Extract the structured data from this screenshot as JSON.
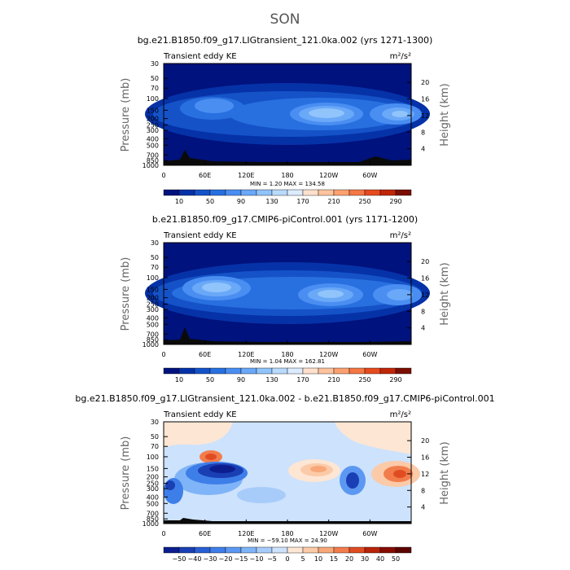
{
  "figure": {
    "title": "SON"
  },
  "colors": {
    "abs_scale": [
      "#00127d",
      "#0632a8",
      "#1552c8",
      "#2870e0",
      "#4a8ef2",
      "#6aa8f8",
      "#90c4fb",
      "#b8dafd",
      "#dcecfe",
      "#ffe0cc",
      "#fdc39e",
      "#fba070",
      "#f47744",
      "#e64a1e",
      "#c02608",
      "#7a0e02"
    ],
    "diff_scale": [
      "#0c1d8e",
      "#1a3fb4",
      "#2a5fd4",
      "#3e7ee8",
      "#5c98f2",
      "#80b4f8",
      "#a8ccfa",
      "#cde2fc",
      "#fde6d4",
      "#fbcaa8",
      "#f8a878",
      "#f27d4c",
      "#e04c22",
      "#b8240a",
      "#860c02",
      "#5a0400"
    ]
  },
  "chart_data": [
    {
      "type": "heatmap",
      "title": "bg.e21.B1850.f09_g17.LIGtransient_121.0ka.002 (yrs 1271-1300)",
      "left_label": "Transient eddy KE",
      "units": "m²/s²",
      "ylabel": "Pressure  (mb)",
      "ylabel_right": "Height  (km)",
      "xticks": [
        "0",
        "60E",
        "120E",
        "180",
        "120W",
        "60W"
      ],
      "yticks": [
        "30",
        "50",
        "70",
        "100",
        "150",
        "200",
        "250",
        "300",
        "400",
        "500",
        "700",
        "850",
        "1000"
      ],
      "yticks_right": [
        "20",
        "16",
        "12",
        "8",
        "4"
      ],
      "stats": "MIN =    1.20   MAX = 134.58",
      "colorbar_labels": [
        "10",
        "50",
        "90",
        "130",
        "170",
        "210",
        "250",
        "290"
      ],
      "grid": false
    },
    {
      "type": "heatmap",
      "title": "b.e21.B1850.f09_g17.CMIP6-piControl.001 (yrs 1171-1200)",
      "left_label": "Transient eddy KE",
      "units": "m²/s²",
      "ylabel": "Pressure  (mb)",
      "ylabel_right": "Height  (km)",
      "xticks": [
        "0",
        "60E",
        "120E",
        "180",
        "120W",
        "60W"
      ],
      "yticks": [
        "30",
        "50",
        "70",
        "100",
        "150",
        "200",
        "250",
        "300",
        "400",
        "500",
        "700",
        "850",
        "1000"
      ],
      "yticks_right": [
        "20",
        "16",
        "12",
        "8",
        "4"
      ],
      "stats": "MIN =    1.04   MAX = 162.81",
      "colorbar_labels": [
        "10",
        "50",
        "90",
        "130",
        "170",
        "210",
        "250",
        "290"
      ],
      "grid": false
    },
    {
      "type": "heatmap",
      "title": "bg.e21.B1850.f09_g17.LIGtransient_121.0ka.002 - b.e21.B1850.f09_g17.CMIP6-piControl.001",
      "left_label": "Transient eddy KE",
      "units": "m²/s²",
      "ylabel": "Pressure  (mb)",
      "ylabel_right": "Height  (km)",
      "xticks": [
        "0",
        "60E",
        "120E",
        "180",
        "120W",
        "60W"
      ],
      "yticks": [
        "30",
        "50",
        "70",
        "100",
        "150",
        "200",
        "250",
        "300",
        "400",
        "500",
        "700",
        "850",
        "1000"
      ],
      "yticks_right": [
        "20",
        "16",
        "12",
        "8",
        "4"
      ],
      "stats": "MIN = −59.10   MAX =   24.90",
      "colorbar_labels": [
        "−50",
        "−40",
        "−30",
        "−20",
        "−15",
        "−10",
        "−5",
        "0",
        "5",
        "10",
        "15",
        "20",
        "30",
        "40",
        "50"
      ],
      "grid": false
    }
  ]
}
